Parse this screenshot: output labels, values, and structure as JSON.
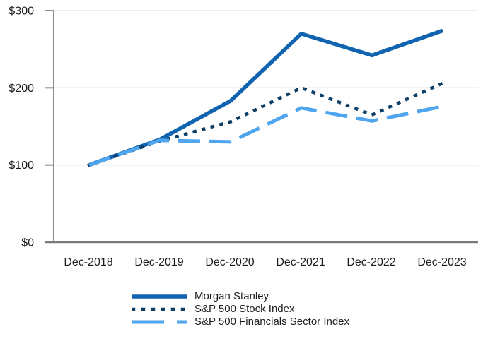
{
  "chart_data": {
    "type": "line",
    "title": "",
    "xlabel": "",
    "ylabel": "",
    "x_categories": [
      "Dec-2018",
      "Dec-2019",
      "Dec-2020",
      "Dec-2021",
      "Dec-2022",
      "Dec-2023"
    ],
    "series": [
      {
        "name": "Morgan Stanley",
        "style": "solid",
        "color": "#1063AF",
        "values": [
          100,
          133,
          183,
          270,
          242,
          274
        ]
      },
      {
        "name": "S&P 500 Stock Index",
        "style": "dotted",
        "color": "#0E3F67",
        "values": [
          100,
          131,
          156,
          200,
          165,
          206
        ]
      },
      {
        "name": "S&P 500 Financials Sector Index",
        "style": "dashed",
        "color": "#4FA5EE",
        "values": [
          100,
          132,
          130,
          174,
          157,
          176
        ]
      }
    ],
    "y_ticks": [
      {
        "value": 0,
        "label": "$0"
      },
      {
        "value": 100,
        "label": "$100"
      },
      {
        "value": 200,
        "label": "$200"
      },
      {
        "value": 300,
        "label": "$300"
      }
    ],
    "ylim": [
      0,
      300
    ],
    "grid": "horizontal-light",
    "grid_color": "#E7E7E7",
    "axis_color": "#8C8C8C",
    "text_color": "#1D1D1D",
    "legend_position": "bottom"
  }
}
